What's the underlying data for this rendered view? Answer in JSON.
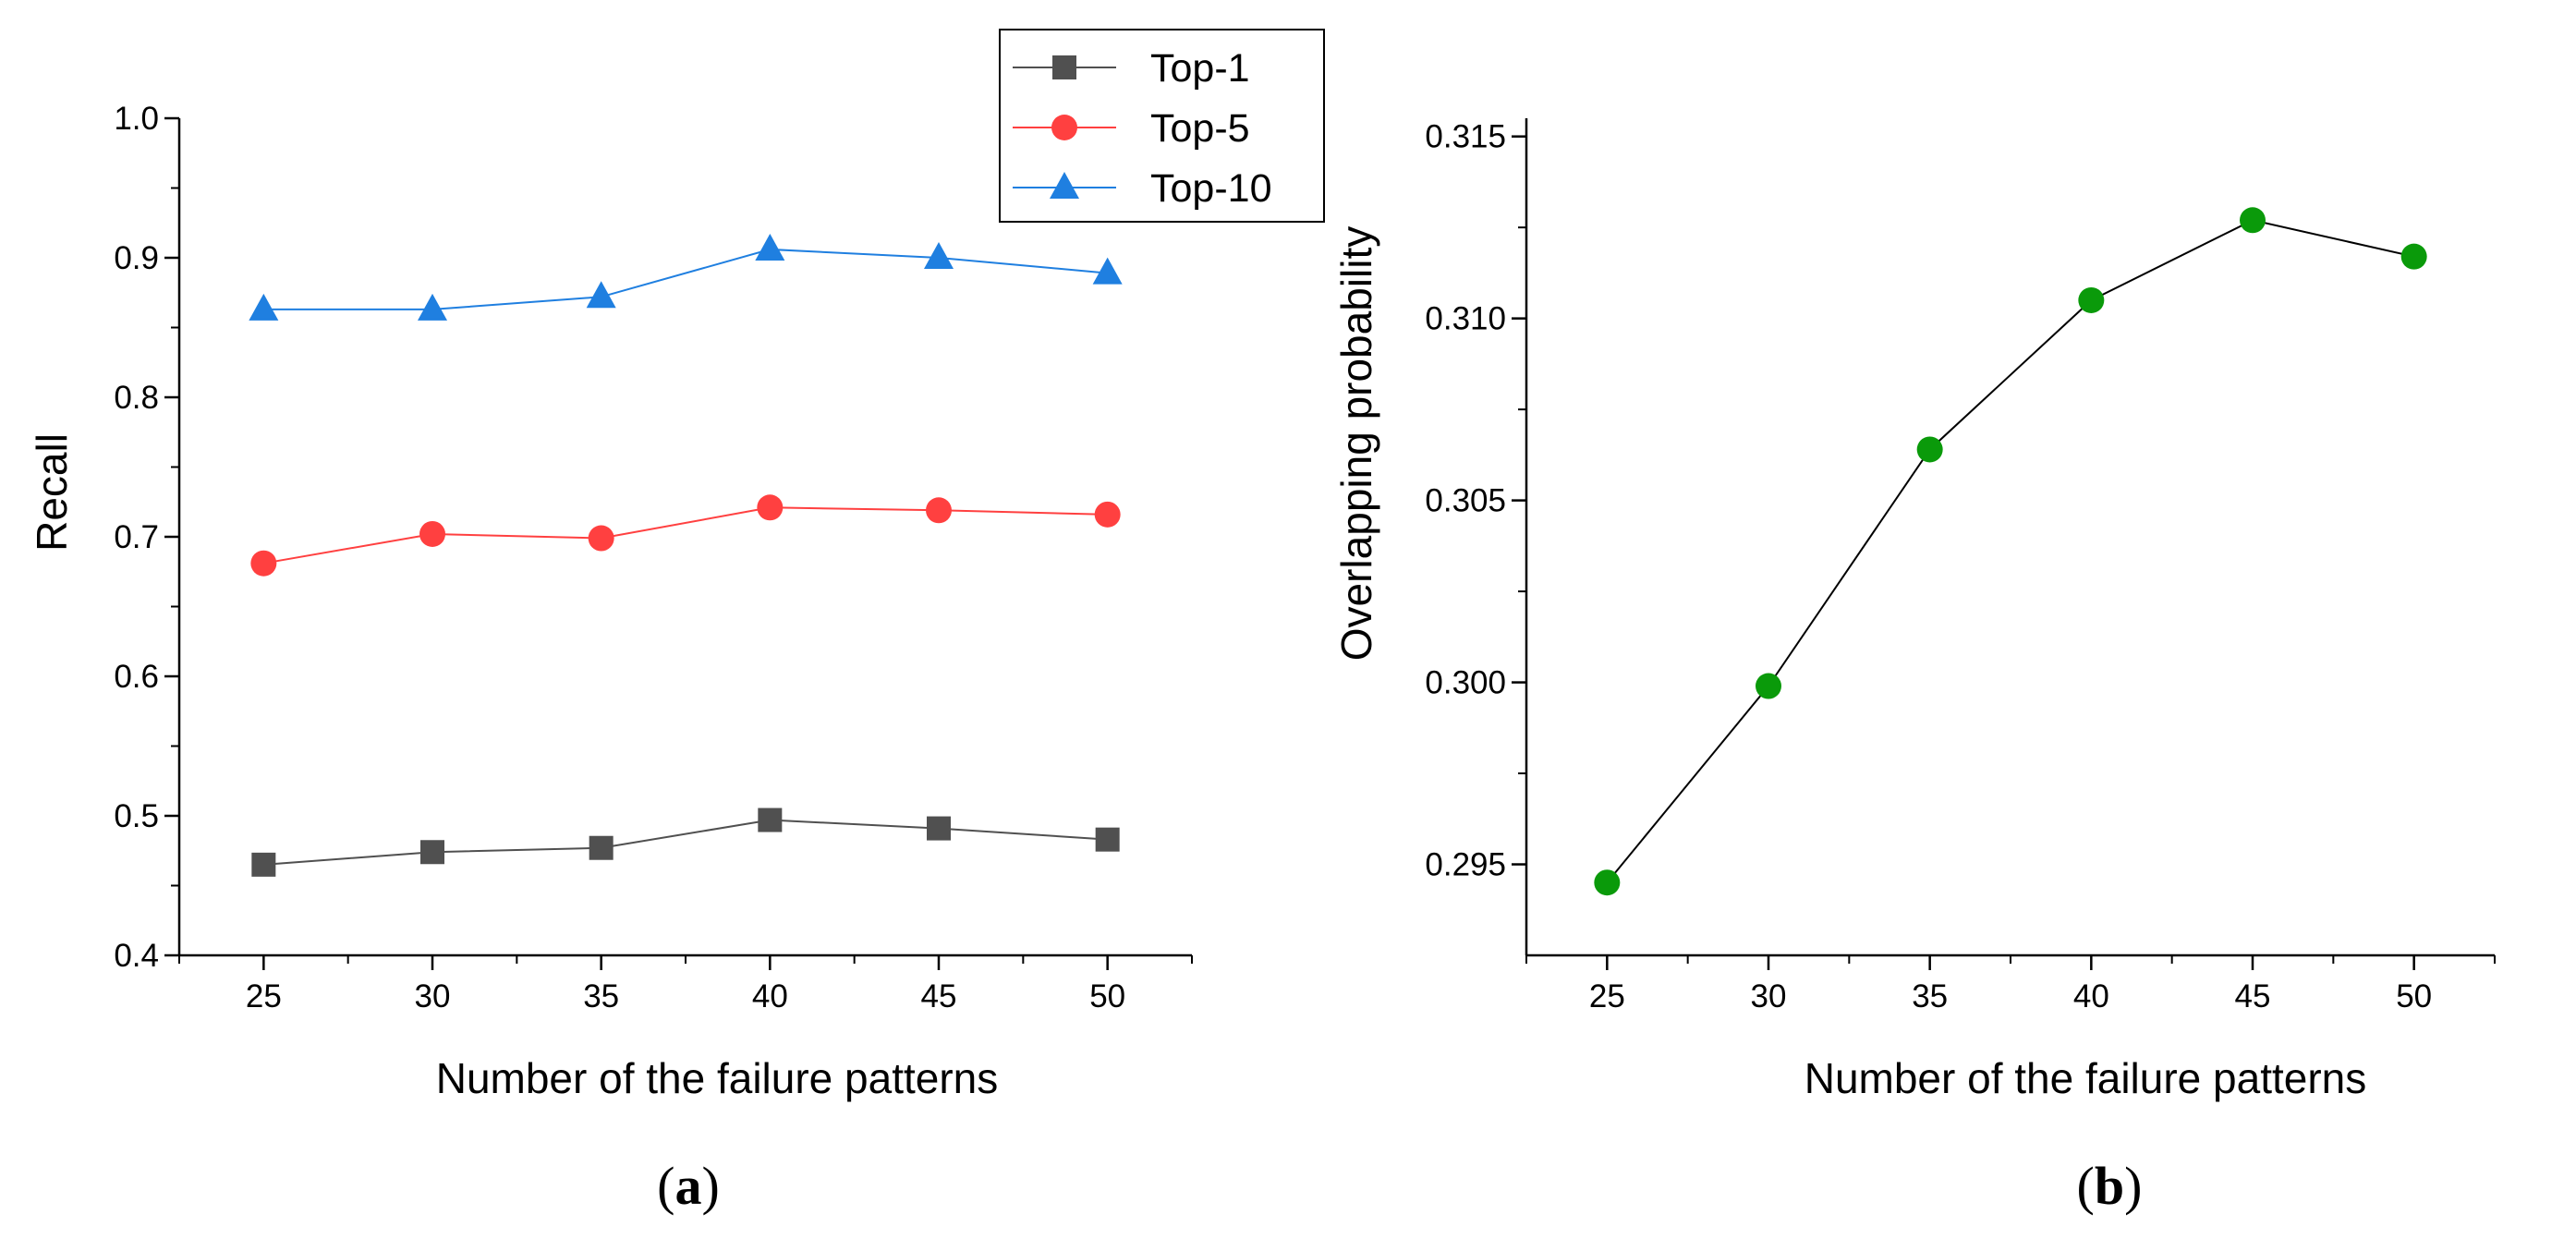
{
  "chart_data": [
    {
      "type": "line",
      "caption_open": "(",
      "caption_letter": "a",
      "caption_close": ")",
      "xlabel": "Number of the failure patterns",
      "ylabel": "Recall",
      "x": [
        25,
        30,
        35,
        40,
        45,
        50
      ],
      "x_ticks": [
        "25",
        "30",
        "35",
        "40",
        "45",
        "50"
      ],
      "xlim": [
        22.5,
        52.5
      ],
      "ylim": [
        0.4,
        1.0
      ],
      "y_ticks": [
        "0.4",
        "0.5",
        "0.6",
        "0.7",
        "0.8",
        "0.9",
        "1.0"
      ],
      "legend_position": "top-right",
      "series": [
        {
          "name": "Top-1",
          "color": "#505050",
          "marker": "square",
          "values": [
            0.465,
            0.474,
            0.477,
            0.497,
            0.491,
            0.483
          ]
        },
        {
          "name": "Top-5",
          "color": "#ff4040",
          "marker": "circle",
          "values": [
            0.681,
            0.702,
            0.699,
            0.721,
            0.719,
            0.716
          ]
        },
        {
          "name": "Top-10",
          "color": "#1f7fe0",
          "marker": "triangle",
          "values": [
            0.863,
            0.863,
            0.872,
            0.906,
            0.9,
            0.889
          ]
        }
      ]
    },
    {
      "type": "line",
      "caption_open": "(",
      "caption_letter": "b",
      "caption_close": ")",
      "xlabel": "Number of the failure patterns",
      "ylabel": "Overlapping probability",
      "x": [
        25,
        30,
        35,
        40,
        45,
        50
      ],
      "x_ticks": [
        "25",
        "30",
        "35",
        "40",
        "45",
        "50"
      ],
      "xlim": [
        22.5,
        52.5
      ],
      "ylim": [
        0.2925,
        0.3155
      ],
      "y_ticks": [
        "0.295",
        "0.300",
        "0.305",
        "0.310",
        "0.315"
      ],
      "series": [
        {
          "color": "#0a9a0a",
          "line_color": "#000000",
          "marker": "circle",
          "values": [
            0.2945,
            0.2999,
            0.3064,
            0.3105,
            0.3127,
            0.3117
          ]
        }
      ]
    }
  ]
}
